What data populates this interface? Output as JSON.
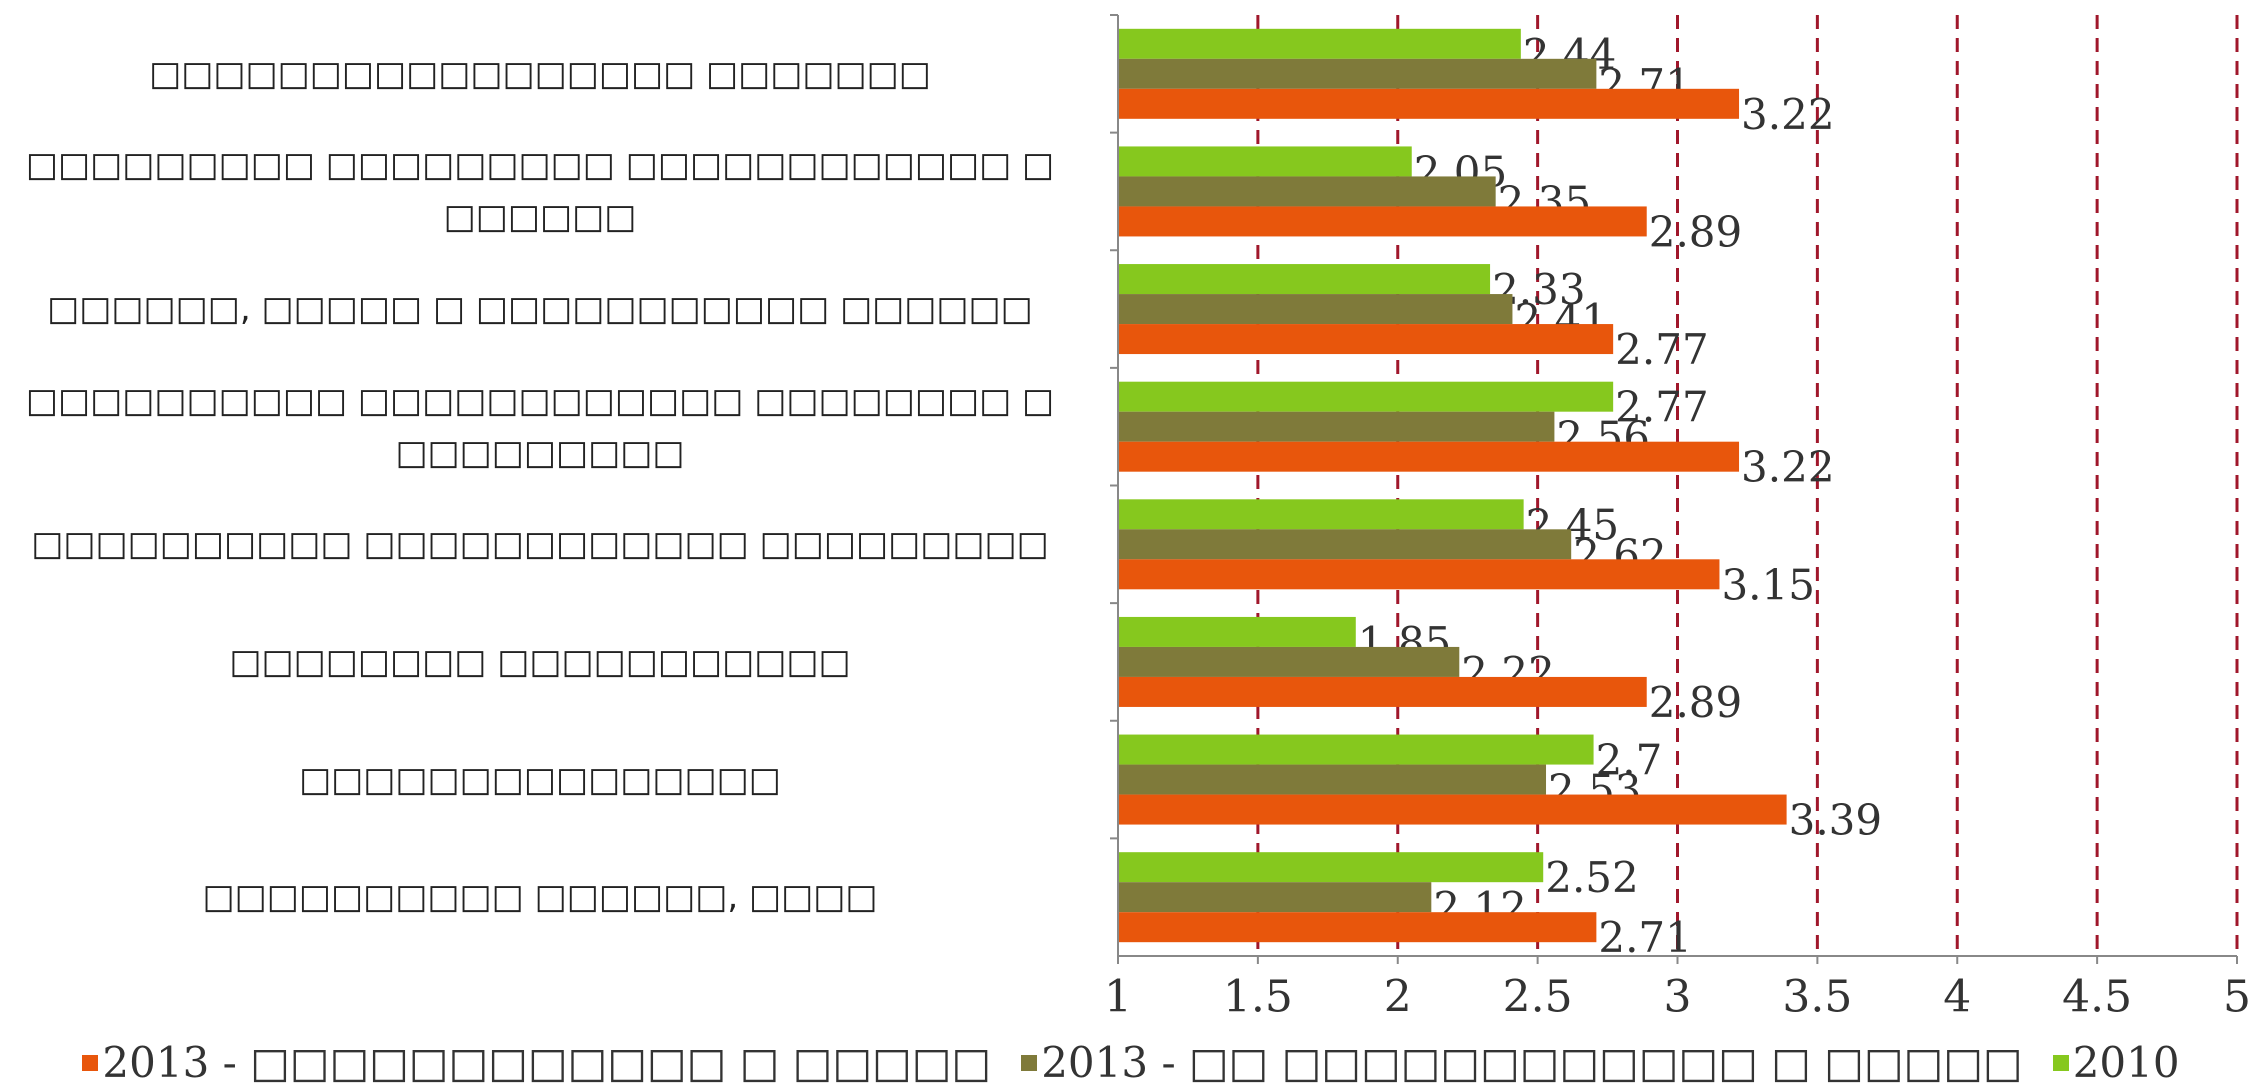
{
  "chart_data": {
    "type": "barh",
    "categories": [
      "□□□□□□□□□□□□□□□□□ □□□□□□□",
      "□□□□□□□□□ □□□□□□□□□ □□□□□□□□□□□□ □\n□□□□□□",
      "□□□□□□, □□□□□ □ □□□□□□□□□□□ □□□□□□",
      "□□□□□□□□□□ □□□□□□□□□□□□ □□□□□□□□ □\n□□□□□□□□□",
      "□□□□□□□□□□ □□□□□□□□□□□□ □□□□□□□□□",
      "□□□□□□□□ □□□□□□□□□□□",
      "□□□□□□□□□□□□□□□",
      "□□□□□□□□□□ □□□□□□, □□□□"
    ],
    "series": [
      {
        "name": "2013 - □□□□□□□□□□□□ □ □□□□□",
        "color": "#e8560c",
        "values": [
          3.22,
          2.89,
          2.77,
          3.22,
          3.15,
          2.89,
          3.39,
          2.71
        ]
      },
      {
        "name": "2013 - □□ □□□□□□□□□□□□ □ □□□□□",
        "color": "#7f7a3a",
        "values": [
          2.71,
          2.35,
          2.41,
          2.56,
          2.62,
          2.22,
          2.53,
          2.12
        ]
      },
      {
        "name": "2010",
        "color": "#86c81e",
        "values": [
          2.44,
          2.05,
          2.33,
          2.77,
          2.45,
          1.85,
          2.7,
          2.52
        ]
      }
    ],
    "xlim": [
      1,
      5
    ],
    "xticks": [
      1,
      1.5,
      2,
      2.5,
      3,
      3.5,
      4,
      4.5,
      5
    ],
    "grid": true,
    "legend": "bottom"
  }
}
